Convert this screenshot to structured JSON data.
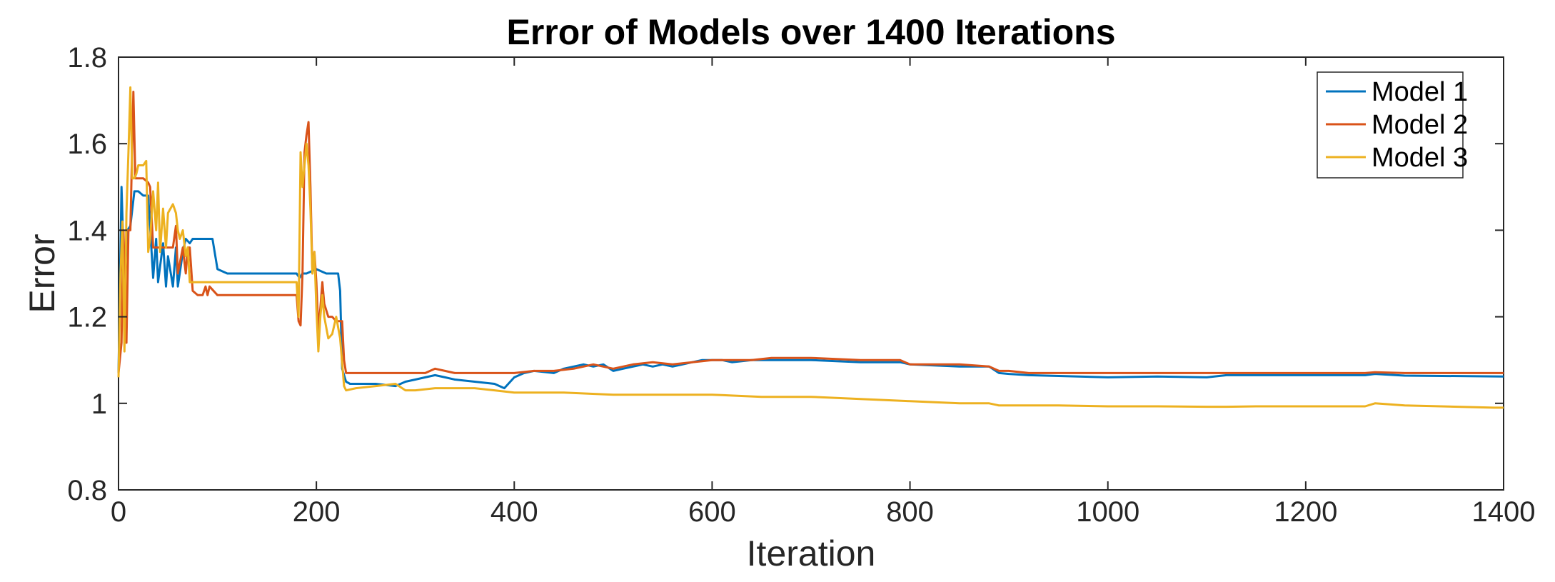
{
  "chart_data": {
    "type": "line",
    "title": "Error of Models over 1400 Iterations",
    "xlabel": "Iteration",
    "ylabel": "Error",
    "xlim": [
      0,
      1400
    ],
    "ylim": [
      0.8,
      1.8
    ],
    "xticks": [
      0,
      200,
      400,
      600,
      800,
      1000,
      1200,
      1400
    ],
    "xtick_labels": [
      "0",
      "200",
      "400",
      "600",
      "800",
      "1000",
      "1200",
      "1400"
    ],
    "yticks": [
      0.8,
      1,
      1.2,
      1.4,
      1.6,
      1.8
    ],
    "ytick_labels": [
      "0.8",
      "1",
      "1.2",
      "1.4",
      "1.6",
      "1.8"
    ],
    "grid": false,
    "legend_position": "top-right",
    "series": [
      {
        "name": "Model 1",
        "color": "#0072BD",
        "x": [
          0,
          3,
          6,
          9,
          12,
          16,
          20,
          25,
          30,
          35,
          38,
          40,
          45,
          48,
          50,
          55,
          58,
          60,
          65,
          68,
          72,
          75,
          80,
          90,
          95,
          100,
          110,
          120,
          150,
          180,
          183,
          186,
          190,
          200,
          210,
          222,
          224,
          226,
          230,
          234,
          240,
          260,
          280,
          290,
          300,
          310,
          320,
          330,
          340,
          360,
          380,
          390,
          400,
          410,
          420,
          440,
          450,
          460,
          470,
          480,
          490,
          500,
          510,
          520,
          530,
          540,
          550,
          560,
          570,
          580,
          590,
          600,
          610,
          620,
          640,
          660,
          680,
          700,
          750,
          790,
          800,
          850,
          880,
          890,
          900,
          920,
          1000,
          1050,
          1100,
          1120,
          1200,
          1260,
          1270,
          1300,
          1400
        ],
        "y": [
          1.07,
          1.5,
          1.28,
          1.4,
          1.41,
          1.49,
          1.49,
          1.48,
          1.48,
          1.29,
          1.38,
          1.28,
          1.37,
          1.27,
          1.34,
          1.27,
          1.36,
          1.27,
          1.35,
          1.38,
          1.37,
          1.38,
          1.38,
          1.38,
          1.38,
          1.31,
          1.3,
          1.3,
          1.3,
          1.3,
          1.29,
          1.3,
          1.3,
          1.31,
          1.3,
          1.3,
          1.26,
          1.08,
          1.05,
          1.045,
          1.045,
          1.045,
          1.04,
          1.05,
          1.055,
          1.06,
          1.065,
          1.06,
          1.055,
          1.05,
          1.045,
          1.035,
          1.06,
          1.07,
          1.075,
          1.07,
          1.08,
          1.085,
          1.09,
          1.085,
          1.09,
          1.075,
          1.08,
          1.085,
          1.09,
          1.085,
          1.09,
          1.085,
          1.09,
          1.095,
          1.1,
          1.1,
          1.1,
          1.095,
          1.1,
          1.1,
          1.1,
          1.1,
          1.095,
          1.095,
          1.09,
          1.085,
          1.085,
          1.07,
          1.068,
          1.065,
          1.06,
          1.062,
          1.06,
          1.065,
          1.065,
          1.065,
          1.068,
          1.064,
          1.062
        ]
      },
      {
        "name": "Model 2",
        "color": "#D95319",
        "x": [
          0,
          3,
          5,
          8,
          10,
          12,
          15,
          17,
          20,
          25,
          30,
          32,
          35,
          38,
          40,
          45,
          50,
          55,
          58,
          60,
          65,
          68,
          70,
          72,
          75,
          80,
          85,
          88,
          90,
          92,
          100,
          150,
          180,
          182,
          184,
          186,
          188,
          190,
          192,
          194,
          196,
          198,
          200,
          202,
          204,
          206,
          208,
          212,
          216,
          220,
          226,
          228,
          230,
          240,
          280,
          300,
          310,
          320,
          330,
          340,
          380,
          400,
          420,
          440,
          460,
          480,
          500,
          520,
          540,
          560,
          580,
          600,
          620,
          640,
          660,
          680,
          700,
          750,
          790,
          800,
          850,
          880,
          890,
          900,
          920,
          1000,
          1050,
          1100,
          1120,
          1200,
          1260,
          1270,
          1300,
          1400
        ],
        "y": [
          1.07,
          1.14,
          1.4,
          1.14,
          1.4,
          1.4,
          1.72,
          1.52,
          1.52,
          1.52,
          1.51,
          1.5,
          1.36,
          1.36,
          1.36,
          1.36,
          1.36,
          1.36,
          1.41,
          1.3,
          1.36,
          1.3,
          1.36,
          1.36,
          1.26,
          1.25,
          1.25,
          1.27,
          1.25,
          1.27,
          1.25,
          1.25,
          1.25,
          1.19,
          1.18,
          1.3,
          1.58,
          1.62,
          1.65,
          1.5,
          1.3,
          1.35,
          1.28,
          1.17,
          1.22,
          1.28,
          1.23,
          1.2,
          1.2,
          1.19,
          1.19,
          1.1,
          1.07,
          1.07,
          1.07,
          1.07,
          1.07,
          1.08,
          1.075,
          1.07,
          1.07,
          1.07,
          1.075,
          1.075,
          1.08,
          1.09,
          1.08,
          1.09,
          1.095,
          1.09,
          1.095,
          1.1,
          1.1,
          1.1,
          1.105,
          1.105,
          1.105,
          1.1,
          1.1,
          1.09,
          1.09,
          1.085,
          1.075,
          1.075,
          1.07,
          1.07,
          1.07,
          1.07,
          1.07,
          1.07,
          1.07,
          1.072,
          1.07,
          1.07
        ]
      },
      {
        "name": "Model 3",
        "color": "#EDB120",
        "x": [
          0,
          2,
          4,
          6,
          8,
          10,
          12,
          14,
          16,
          18,
          20,
          25,
          28,
          30,
          32,
          35,
          38,
          40,
          42,
          45,
          48,
          50,
          55,
          58,
          60,
          62,
          65,
          68,
          70,
          72,
          80,
          100,
          150,
          180,
          182,
          184,
          186,
          188,
          190,
          192,
          194,
          196,
          198,
          200,
          202,
          204,
          206,
          208,
          212,
          216,
          220,
          224,
          228,
          230,
          240,
          260,
          280,
          290,
          300,
          320,
          340,
          360,
          380,
          400,
          450,
          500,
          550,
          600,
          650,
          700,
          750,
          800,
          850,
          880,
          890,
          900,
          950,
          1000,
          1050,
          1100,
          1120,
          1150,
          1200,
          1260,
          1270,
          1300,
          1390,
          1400
        ],
        "y": [
          1.06,
          1.3,
          1.42,
          1.12,
          1.44,
          1.58,
          1.73,
          1.52,
          1.52,
          1.53,
          1.55,
          1.55,
          1.56,
          1.35,
          1.38,
          1.49,
          1.4,
          1.51,
          1.35,
          1.45,
          1.36,
          1.44,
          1.46,
          1.44,
          1.4,
          1.38,
          1.4,
          1.34,
          1.36,
          1.28,
          1.28,
          1.28,
          1.28,
          1.28,
          1.2,
          1.58,
          1.5,
          1.55,
          1.6,
          1.55,
          1.45,
          1.3,
          1.35,
          1.22,
          1.12,
          1.2,
          1.25,
          1.2,
          1.15,
          1.16,
          1.2,
          1.15,
          1.04,
          1.03,
          1.035,
          1.04,
          1.045,
          1.03,
          1.03,
          1.035,
          1.035,
          1.035,
          1.03,
          1.025,
          1.025,
          1.02,
          1.02,
          1.02,
          1.015,
          1.015,
          1.01,
          1.005,
          1.0,
          1.0,
          0.995,
          0.995,
          0.995,
          0.993,
          0.993,
          0.992,
          0.992,
          0.993,
          0.993,
          0.993,
          1.0,
          0.995,
          0.99,
          0.99
        ]
      }
    ]
  }
}
